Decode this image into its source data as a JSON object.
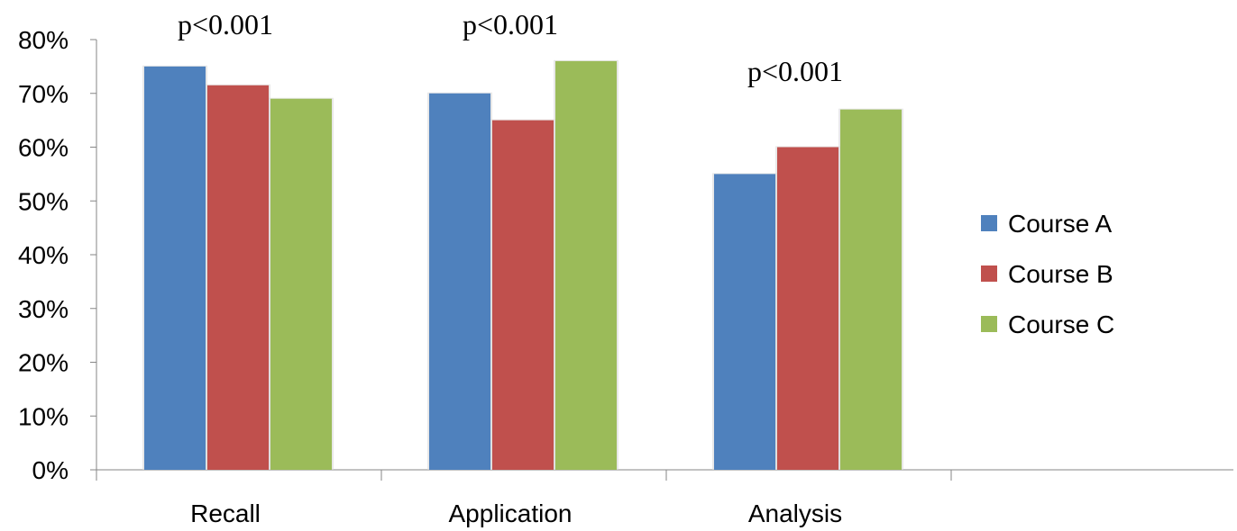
{
  "chart_data": {
    "type": "bar",
    "categories": [
      "Recall",
      "Application",
      "Analysis"
    ],
    "series": [
      {
        "name": "Course A",
        "values": [
          0.75,
          0.7,
          0.55
        ],
        "color": "#4F81BD"
      },
      {
        "name": "Course B",
        "values": [
          0.715,
          0.65,
          0.6
        ],
        "color": "#C0504D"
      },
      {
        "name": "Course C",
        "values": [
          0.69,
          0.76,
          0.67
        ],
        "color": "#9BBB59"
      }
    ],
    "y_ticks": [
      "0%",
      "10%",
      "20%",
      "30%",
      "40%",
      "50%",
      "60%",
      "70%",
      "80%"
    ],
    "ylim": [
      0,
      0.8
    ],
    "annotations": [
      "p<0.001",
      "p<0.001",
      "p<0.001"
    ],
    "legend_position": "right",
    "grid": false
  }
}
